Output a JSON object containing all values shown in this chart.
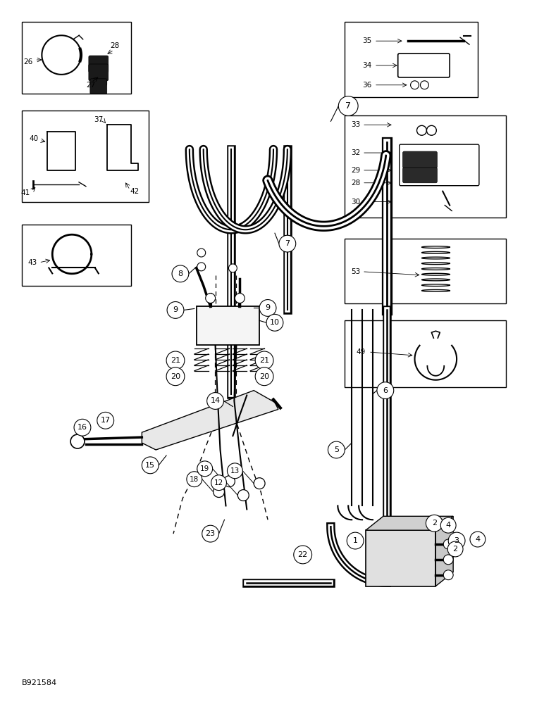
{
  "bg_color": "#ffffff",
  "line_color": "#000000",
  "fig_width": 7.72,
  "fig_height": 10.0,
  "dpi": 100,
  "watermark": "B921584"
}
